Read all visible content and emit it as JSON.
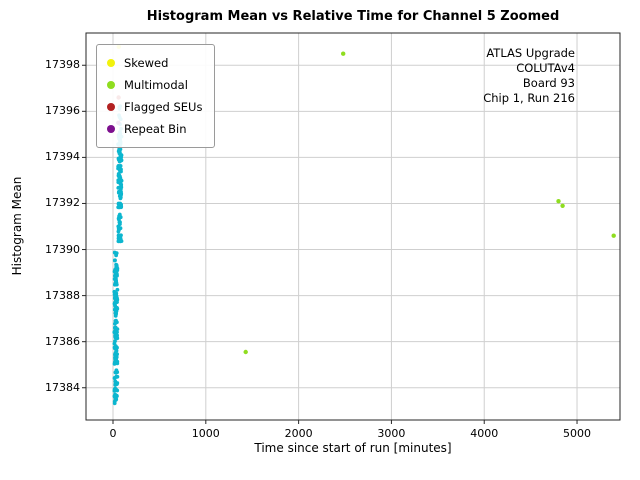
{
  "figure": {
    "title": "Histogram Mean vs Relative Time for Channel 5 Zoomed"
  },
  "legend": {
    "items": [
      {
        "label": "Skewed",
        "color": "#f2f20c"
      },
      {
        "label": "Multimodal",
        "color": "#8fdd1f"
      },
      {
        "label": "Flagged SEUs",
        "color": "#b22222"
      },
      {
        "label": "Repeat Bin",
        "color": "#7d0f8e"
      }
    ]
  },
  "annotation": {
    "lines": [
      "ATLAS Upgrade",
      "COLUTAv4",
      "Board 93",
      "Chip 1, Run 216"
    ]
  },
  "chart_data": {
    "type": "scatter",
    "title": "Histogram Mean vs Relative Time for Channel 5 Zoomed",
    "xlabel": "Time since start of run [minutes]",
    "ylabel": "Histogram Mean",
    "xlim": [
      -291,
      5463
    ],
    "ylim": [
      17382.6,
      17399.4
    ],
    "xticks": [
      0,
      1000,
      2000,
      3000,
      4000,
      5000
    ],
    "yticks": [
      17384,
      17386,
      17388,
      17390,
      17392,
      17394,
      17396,
      17398
    ],
    "grid": true,
    "legend_position": "upper left",
    "series": [
      {
        "name": "Normal",
        "color": "#0cb6cf",
        "marker_size": 1.9,
        "clusters": [
          {
            "x_range": [
              14,
              48
            ],
            "y_range": [
              17383.3,
              17389.9
            ],
            "n": 150
          },
          {
            "x_range": [
              55,
              92
            ],
            "y_range": [
              17390.2,
              17395.0
            ],
            "n": 120
          },
          {
            "x_range": [
              58,
              86
            ],
            "y_range": [
              17395.0,
              17396.4
            ],
            "n": 10
          }
        ],
        "points": []
      },
      {
        "name": "Multimodal",
        "color": "#8fdd1f",
        "marker_size": 2.2,
        "points": [
          [
            2480,
            17398.5
          ],
          [
            1430,
            17385.55
          ],
          [
            4800,
            17392.1
          ],
          [
            4845,
            17391.9
          ],
          [
            5395,
            17390.6
          ]
        ]
      },
      {
        "name": "Skewed",
        "color": "#f2f20c",
        "marker_size": 2.2,
        "points": [
          [
            62,
            17398.8
          ]
        ]
      },
      {
        "name": "Flagged SEUs",
        "color": "#b22222",
        "marker_size": 2.2,
        "points": [
          [
            60,
            17396.6
          ]
        ]
      },
      {
        "name": "Repeat Bin",
        "color": "#7d0f8e",
        "marker_size": 2.2,
        "points": [
          [
            57,
            17395.5
          ]
        ]
      }
    ]
  }
}
